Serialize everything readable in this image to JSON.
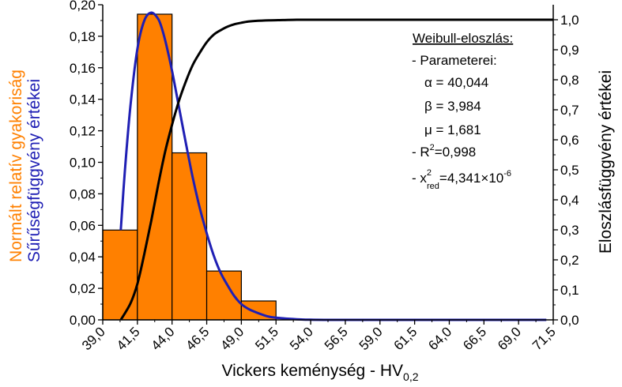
{
  "chart_data": {
    "type": "bar",
    "title": "",
    "xlabel": "Vickers keménység - HV",
    "xlabel_sub": "0,2",
    "ylabel_left_outer": "Normált relatív gyakoriság",
    "ylabel_left_inner": "Sűrűségfüggvény értékei",
    "ylabel_right": "Eloszlásfüggvény értékei",
    "xlim": [
      39.0,
      71.5
    ],
    "ylim_left": [
      0.0,
      0.2
    ],
    "ylim_right": [
      0.0,
      1.05
    ],
    "x_ticks": [
      "39,0",
      "41,5",
      "44,0",
      "46,5",
      "49,0",
      "51,5",
      "54,0",
      "56,5",
      "59,0",
      "61,5",
      "64,0",
      "66,5",
      "69,0",
      "71,5"
    ],
    "x_tick_values": [
      39.0,
      41.5,
      44.0,
      46.5,
      49.0,
      51.5,
      54.0,
      56.5,
      59.0,
      61.5,
      64.0,
      66.5,
      69.0,
      71.5
    ],
    "y_left_ticks": [
      "0,00",
      "0,02",
      "0,04",
      "0,06",
      "0,08",
      "0,10",
      "0,12",
      "0,14",
      "0,16",
      "0,18",
      "0,20"
    ],
    "y_left_tick_values": [
      0,
      0.02,
      0.04,
      0.06,
      0.08,
      0.1,
      0.12,
      0.14,
      0.16,
      0.18,
      0.2
    ],
    "y_right_ticks": [
      "0,0",
      "0,1",
      "0,2",
      "0,3",
      "0,4",
      "0,5",
      "0,6",
      "0,7",
      "0,8",
      "0,9",
      "1,0"
    ],
    "y_right_tick_values": [
      0,
      0.1,
      0.2,
      0.3,
      0.4,
      0.5,
      0.6,
      0.7,
      0.8,
      0.9,
      1.0
    ],
    "histogram": {
      "name": "Normált relatív gyakoriság",
      "color": "#ff8000",
      "bins": [
        {
          "x0": 39.0,
          "x1": 41.5,
          "value": 0.057
        },
        {
          "x0": 41.5,
          "x1": 44.0,
          "value": 0.194
        },
        {
          "x0": 44.0,
          "x1": 46.5,
          "value": 0.106
        },
        {
          "x0": 46.5,
          "x1": 49.0,
          "value": 0.031
        },
        {
          "x0": 49.0,
          "x1": 51.5,
          "value": 0.012
        }
      ]
    },
    "series": [
      {
        "name": "Sűrűségfüggvény",
        "axis": "left",
        "color": "#1f1fb4",
        "x": [
          40.3,
          40.6,
          41.0,
          41.5,
          42.0,
          42.5,
          43.0,
          43.3,
          43.6,
          44.0,
          44.5,
          45.0,
          45.5,
          46.0,
          46.5,
          47.0,
          47.5,
          48.0,
          48.5,
          49.0,
          49.5,
          50.0,
          51.0,
          52.0,
          53.0,
          54.0,
          55.0,
          56.5,
          59.0,
          61.5,
          64.0,
          66.5,
          69.0,
          71.0
        ],
        "y": [
          0.057,
          0.095,
          0.136,
          0.172,
          0.19,
          0.195,
          0.191,
          0.184,
          0.174,
          0.158,
          0.135,
          0.112,
          0.09,
          0.071,
          0.055,
          0.041,
          0.03,
          0.022,
          0.015,
          0.01,
          0.007,
          0.005,
          0.002,
          0.001,
          0.0004,
          0.0001,
          0.0,
          0.0,
          0.0,
          0.0,
          0.0,
          0.0,
          0.0,
          0.0
        ]
      },
      {
        "name": "Eloszlásfüggvény",
        "axis": "right",
        "color": "#000000",
        "x": [
          40.3,
          41.0,
          41.5,
          42.0,
          42.5,
          43.0,
          43.5,
          44.0,
          44.5,
          45.0,
          45.5,
          46.0,
          46.5,
          47.0,
          47.5,
          48.0,
          48.5,
          49.0,
          49.5,
          50.0,
          51.0,
          52.0,
          53.0,
          54.0,
          55.0,
          56.5,
          59.0,
          61.5,
          64.0,
          66.5,
          69.0,
          71.5
        ],
        "y": [
          0.0,
          0.055,
          0.12,
          0.22,
          0.33,
          0.45,
          0.56,
          0.65,
          0.73,
          0.795,
          0.85,
          0.89,
          0.925,
          0.95,
          0.965,
          0.977,
          0.985,
          0.99,
          0.994,
          0.996,
          0.998,
          0.999,
          1.0,
          1.0,
          1.0,
          1.0,
          1.0,
          1.0,
          1.0,
          1.0,
          1.0,
          1.0
        ]
      }
    ],
    "annotation": {
      "heading": "Weibull-eloszlás:",
      "params_label": "- Parameterei:",
      "alpha": "α = 40,044",
      "beta": "β = 3,984",
      "mu": "μ = 1,681",
      "r2_prefix": "-  R",
      "r2_sup": "2",
      "r2_value": "=0,998",
      "chi_prefix": "-  x",
      "chi_sup": "2",
      "chi_sub": "red",
      "chi_value": "=4,341×10",
      "chi_exp": "-6"
    },
    "colors": {
      "bar_fill": "#ff8000",
      "pdf_line": "#1f1fb4",
      "cdf_line": "#000000",
      "left_outer_label": "#ff8000",
      "left_inner_label": "#1f1fb4"
    }
  }
}
